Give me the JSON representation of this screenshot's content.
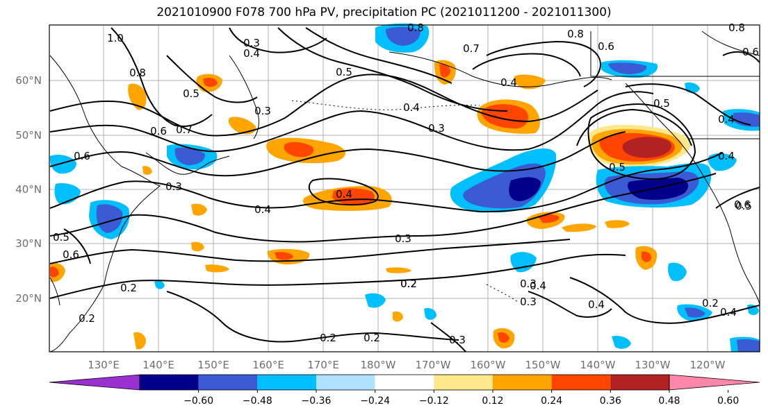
{
  "title": "2021010900 F078 700 hPa PV, precipitation PC (2021011200 - 2021011300)",
  "lat_labels": [
    "60°N",
    "50°N",
    "40°N",
    "30°N",
    "20°N"
  ],
  "lon_labels": [
    "130°E",
    "140°E",
    "150°E",
    "160°E",
    "170°E",
    "180°W",
    "170°W",
    "160°W",
    "150°W",
    "140°W",
    "130°W",
    "120°W"
  ],
  "colorbar": {
    "colors": [
      "#9b30d0",
      "#00008b",
      "#3a5bd4",
      "#00bfff",
      "#b0e2ff",
      "#ffffff",
      "#ffe78a",
      "#ffa500",
      "#ff4500",
      "#b22222",
      "#ff88aa"
    ],
    "labels": [
      "−0.60",
      "−0.48",
      "−0.36",
      "−0.24",
      "−0.12",
      "0.12",
      "0.24",
      "0.36",
      "0.48",
      "0.60"
    ]
  },
  "contour_labels": [
    "0.8",
    "0.8",
    "0.8",
    "0.7",
    "0.6",
    "0.3",
    "0.4",
    "1.0",
    "0.8",
    "0.5",
    "0.3",
    "0.5",
    "0.4",
    "0.3",
    "0.6",
    "0.7",
    "0.4",
    "0.5",
    "0.6",
    "0.4",
    "0.6",
    "0.5",
    "0.6",
    "0.3",
    "0.4",
    "0.4",
    "0.4",
    "0.4",
    "0.3",
    "0.5",
    "0.6",
    "0.2",
    "0.2",
    "0.2",
    "0.2",
    "0.3",
    "0.3",
    "0.4",
    "0.3",
    "0.4",
    "0.2",
    "0.2",
    "0.5",
    "0.2"
  ],
  "colors": {
    "contour": "#000000",
    "frame": "#000000",
    "grid": "#b0b0b0"
  }
}
